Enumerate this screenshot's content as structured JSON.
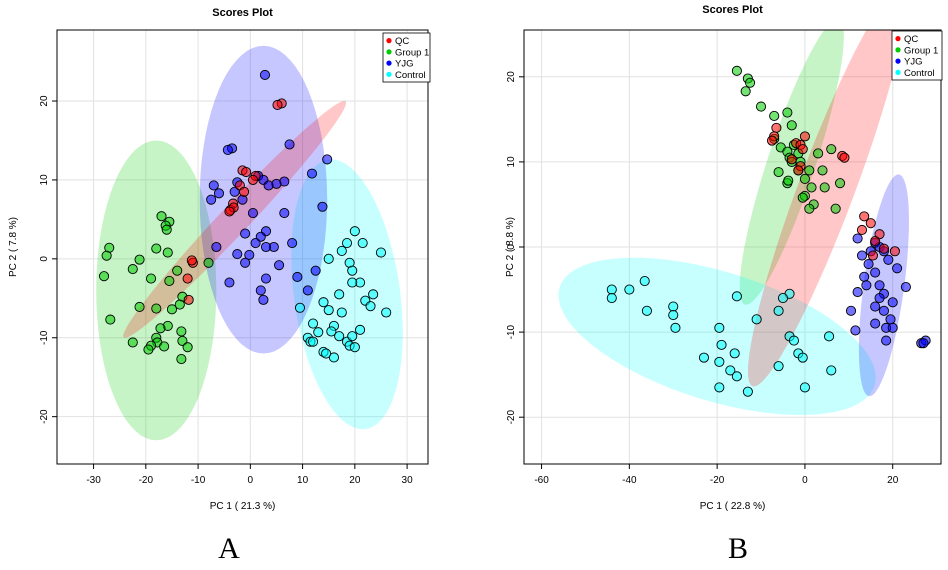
{
  "chart_data": [
    {
      "type": "scatter",
      "panel_label": "A",
      "title": "Scores Plot",
      "xlabel": "PC 1 ( 21.3 %)",
      "ylabel": "PC 2 ( 7.8 %)",
      "xlim": [
        -37,
        34
      ],
      "ylim": [
        -26,
        29
      ],
      "xticks": [
        -30,
        -20,
        -10,
        0,
        10,
        20,
        30
      ],
      "yticks": [
        -20,
        -10,
        0,
        10,
        20
      ],
      "grid": true,
      "legend_position": "top-right",
      "series": [
        {
          "name": "QC",
          "color": "#ff0000",
          "points": [
            [
              6,
              19.7
            ],
            [
              5.2,
              19.5
            ],
            [
              -1.5,
              11.2
            ],
            [
              -0.8,
              11
            ],
            [
              1,
              10.5
            ],
            [
              0.5,
              10
            ],
            [
              -2,
              9.3
            ],
            [
              -1.2,
              8.5
            ],
            [
              -3.3,
              7
            ],
            [
              -3.8,
              6.2
            ],
            [
              -3.2,
              6.5
            ],
            [
              -4,
              6
            ],
            [
              -11,
              -0.5
            ],
            [
              -11.2,
              -0.2
            ],
            [
              -12,
              -2.5
            ],
            [
              -11.8,
              -5.2
            ]
          ],
          "ellipse": {
            "cx": -3,
            "cy": 5,
            "rx": 26,
            "ry": 2.2,
            "angle_deg": 35
          }
        },
        {
          "name": "Group 1",
          "color": "#00cc00",
          "points": [
            [
              -17,
              5.4
            ],
            [
              -15.5,
              4.7
            ],
            [
              -16.2,
              4.2
            ],
            [
              -16,
              3.7
            ],
            [
              -27,
              1.4
            ],
            [
              -27.5,
              0.4
            ],
            [
              -18,
              1.3
            ],
            [
              -15.8,
              0.8
            ],
            [
              -21.2,
              -0.1
            ],
            [
              -22.5,
              -1.3
            ],
            [
              -14,
              -1.5
            ],
            [
              -28,
              -2.2
            ],
            [
              -19,
              -2.5
            ],
            [
              -15.5,
              -2.8
            ],
            [
              -8,
              -0.5
            ],
            [
              -13,
              -4.8
            ],
            [
              -13.5,
              -5.8
            ],
            [
              -18,
              -6.3
            ],
            [
              -21.2,
              -6.1
            ],
            [
              -15,
              -6.4
            ],
            [
              -26.8,
              -7.7
            ],
            [
              -15.8,
              -8.5
            ],
            [
              -17.2,
              -8.8
            ],
            [
              -13.2,
              -9.2
            ],
            [
              -18,
              -10
            ],
            [
              -17.8,
              -10.6
            ],
            [
              -13,
              -10.4
            ],
            [
              -22.5,
              -10.6
            ],
            [
              -16.5,
              -11.1
            ],
            [
              -19,
              -11
            ],
            [
              -19.5,
              -11.5
            ],
            [
              -12,
              -11.2
            ],
            [
              -13.2,
              -12.7
            ]
          ],
          "ellipse": {
            "cx": -18,
            "cy": -4,
            "rx": 11.5,
            "ry": 19,
            "angle_deg": 0
          }
        },
        {
          "name": "YJG",
          "color": "#0000ff",
          "points": [
            [
              2.8,
              23.3
            ],
            [
              -3.5,
              14
            ],
            [
              -4.3,
              13.8
            ],
            [
              7.5,
              14.5
            ],
            [
              14.7,
              12.6
            ],
            [
              1.5,
              10.5
            ],
            [
              2.5,
              10
            ],
            [
              6.5,
              9.8
            ],
            [
              11.8,
              10.8
            ],
            [
              -7,
              9.3
            ],
            [
              -6,
              8.3
            ],
            [
              -3,
              8.5
            ],
            [
              -2.5,
              9.7
            ],
            [
              3.5,
              9.3
            ],
            [
              5,
              9.5
            ],
            [
              -7.5,
              7.5
            ],
            [
              -1.5,
              7.5
            ],
            [
              0.5,
              5.8
            ],
            [
              3,
              3.5
            ],
            [
              6.5,
              5.8
            ],
            [
              13.8,
              6.6
            ],
            [
              -1,
              3.2
            ],
            [
              2,
              2.8
            ],
            [
              1,
              2
            ],
            [
              4.5,
              1.5
            ],
            [
              8,
              2
            ],
            [
              -6.5,
              1.5
            ],
            [
              -2.5,
              0.6
            ],
            [
              -0.2,
              0.5
            ],
            [
              3,
              1.5
            ],
            [
              -1,
              -0.5
            ],
            [
              5.5,
              -0.8
            ],
            [
              9,
              -2.3
            ],
            [
              3,
              -2.5
            ],
            [
              -4,
              -3
            ],
            [
              12.5,
              -1.5
            ],
            [
              2,
              -4
            ],
            [
              2.5,
              -5.2
            ],
            [
              11,
              -4
            ]
          ],
          "ellipse": {
            "cx": 2.5,
            "cy": 7.5,
            "rx": 12.2,
            "ry": 19.5,
            "angle_deg": 0
          }
        },
        {
          "name": "Control",
          "color": "#00ffff",
          "points": [
            [
              20,
              3.5
            ],
            [
              18.5,
              2
            ],
            [
              21.5,
              2
            ],
            [
              17.5,
              1
            ],
            [
              25,
              0.8
            ],
            [
              15,
              0
            ],
            [
              19,
              -0.5
            ],
            [
              19.5,
              -1.5
            ],
            [
              21,
              -3
            ],
            [
              19.5,
              -3
            ],
            [
              17,
              -4.5
            ],
            [
              23.5,
              -4.5
            ],
            [
              14,
              -5.5
            ],
            [
              22,
              -5.3
            ],
            [
              15,
              -6.5
            ],
            [
              17.5,
              -6.8
            ],
            [
              23,
              -6
            ],
            [
              26,
              -6.8
            ],
            [
              9.5,
              -6.2
            ],
            [
              12,
              -8.2
            ],
            [
              16,
              -8.5
            ],
            [
              21,
              -9
            ],
            [
              13,
              -9.3
            ],
            [
              15.5,
              -9.2
            ],
            [
              17,
              -9.8
            ],
            [
              11,
              -10
            ],
            [
              11.5,
              -10.5
            ],
            [
              18.5,
              -10.5
            ],
            [
              19.5,
              -9.8
            ],
            [
              12,
              -10.5
            ],
            [
              14,
              -11.8
            ],
            [
              16,
              -12.5
            ],
            [
              14.5,
              -12
            ],
            [
              19,
              -11
            ],
            [
              20,
              -11.2
            ]
          ],
          "ellipse": {
            "cx": 18.5,
            "cy": -4.5,
            "rx": 10,
            "ry": 17.5,
            "angle_deg": 15
          }
        }
      ]
    },
    {
      "type": "scatter",
      "panel_label": "B",
      "title": "Scores Plot",
      "xlabel": "PC 1 ( 22.8 %)",
      "ylabel": "PC 2 ( 8.8 %)",
      "xlim": [
        -64,
        31
      ],
      "ylim": [
        -25.5,
        25.5
      ],
      "xticks": [
        -60,
        -40,
        -20,
        0,
        20
      ],
      "yticks": [
        -20,
        -10,
        0,
        10,
        20
      ],
      "grid": true,
      "legend_position": "top-right",
      "series": [
        {
          "name": "QC",
          "color": "#ff0000",
          "points": [
            [
              -6.5,
              14
            ],
            [
              -7,
              13
            ],
            [
              -7.5,
              12.5
            ],
            [
              -2,
              12.2
            ],
            [
              -1,
              12
            ],
            [
              0,
              13
            ],
            [
              -3,
              10.3
            ],
            [
              -0.5,
              11.5
            ],
            [
              8.5,
              10.7
            ],
            [
              9,
              10.5
            ],
            [
              -1,
              9.5
            ],
            [
              -1.5,
              9
            ],
            [
              13.5,
              3.6
            ],
            [
              15,
              2.8
            ],
            [
              13,
              2
            ],
            [
              17,
              1.5
            ],
            [
              16,
              0.7
            ],
            [
              20.5,
              -0.5
            ],
            [
              18,
              -0.2
            ],
            [
              15.5,
              -1
            ]
          ],
          "ellipse": {
            "cx": 5,
            "cy": 7,
            "rx": 29,
            "ry": 5.5,
            "angle_deg": 53
          }
        },
        {
          "name": "Group 1",
          "color": "#00cc00",
          "points": [
            [
              -15.5,
              20.7
            ],
            [
              -13,
              19.8
            ],
            [
              -12.5,
              19.3
            ],
            [
              -13.5,
              18.3
            ],
            [
              -10,
              16.5
            ],
            [
              -7,
              15.4
            ],
            [
              -4,
              15.8
            ],
            [
              -3,
              14.3
            ],
            [
              -2.5,
              12
            ],
            [
              -7,
              12.7
            ],
            [
              -5.5,
              11.7
            ],
            [
              -4,
              11.2
            ],
            [
              -1.5,
              11
            ],
            [
              -3.5,
              10.5
            ],
            [
              -3,
              10
            ],
            [
              -1,
              10
            ],
            [
              3,
              11
            ],
            [
              6,
              11.5
            ],
            [
              -1.5,
              9
            ],
            [
              1,
              9
            ],
            [
              4,
              9
            ],
            [
              -6,
              8.8
            ],
            [
              0,
              8
            ],
            [
              -4,
              7.5
            ],
            [
              -3.8,
              7.8
            ],
            [
              1.5,
              7
            ],
            [
              4.5,
              7
            ],
            [
              0,
              6
            ],
            [
              -0.5,
              5.8
            ],
            [
              2,
              5
            ],
            [
              1,
              4.5
            ],
            [
              7,
              4.5
            ],
            [
              8,
              7.5
            ]
          ],
          "ellipse": {
            "cx": -3,
            "cy": 10,
            "rx": 20,
            "ry": 4.8,
            "angle_deg": 56
          }
        },
        {
          "name": "YJG",
          "color": "#0000ff",
          "points": [
            [
              12,
              1
            ],
            [
              16,
              0.5
            ],
            [
              15,
              -0.5
            ],
            [
              13,
              -1
            ],
            [
              17,
              0
            ],
            [
              18,
              -0.5
            ],
            [
              19,
              -1.5
            ],
            [
              14.5,
              -2
            ],
            [
              16,
              -3
            ],
            [
              13.5,
              -3.5
            ],
            [
              14,
              -4.5
            ],
            [
              17,
              -4.5
            ],
            [
              21,
              -2.5
            ],
            [
              18,
              -5.5
            ],
            [
              17,
              -6
            ],
            [
              12,
              -5.3
            ],
            [
              20,
              -6.5
            ],
            [
              16,
              -7
            ],
            [
              23,
              -4.7
            ],
            [
              18,
              -7.5
            ],
            [
              19.5,
              -8.5
            ],
            [
              10.5,
              -7.5
            ],
            [
              16,
              -9
            ],
            [
              18.5,
              -9.5
            ],
            [
              11.5,
              -9.8
            ],
            [
              20,
              -9.5
            ],
            [
              18.5,
              -11
            ],
            [
              26.5,
              -11.3
            ],
            [
              27.5,
              -11
            ],
            [
              27,
              -11.3
            ]
          ],
          "ellipse": {
            "cx": 18,
            "cy": -4.5,
            "rx": 13.5,
            "ry": 4.5,
            "angle_deg": 74
          }
        },
        {
          "name": "Control",
          "color": "#00ffff",
          "points": [
            [
              -44,
              -5
            ],
            [
              -44,
              -6
            ],
            [
              -40,
              -5
            ],
            [
              -36.5,
              -4
            ],
            [
              -36,
              -7.5
            ],
            [
              -30,
              -7
            ],
            [
              -30,
              -8
            ],
            [
              -29.5,
              -9.5
            ],
            [
              -15.5,
              -5.8
            ],
            [
              -3.5,
              -5.5
            ],
            [
              -5,
              -6
            ],
            [
              -11,
              -8.5
            ],
            [
              -6,
              -7.5
            ],
            [
              -3.5,
              -10.5
            ],
            [
              -2.5,
              -11
            ],
            [
              -19.5,
              -9.5
            ],
            [
              -19,
              -11.5
            ],
            [
              -16,
              -12.5
            ],
            [
              -1.5,
              -12.5
            ],
            [
              -23,
              -13
            ],
            [
              -19.5,
              -13.5
            ],
            [
              -6,
              -14
            ],
            [
              -0.5,
              -13
            ],
            [
              5.5,
              -10.5
            ],
            [
              6,
              -14.5
            ],
            [
              -17,
              -14.5
            ],
            [
              -19.5,
              -16.5
            ],
            [
              -15.5,
              -15.2
            ],
            [
              -13,
              -17
            ],
            [
              0,
              -16.5
            ]
          ],
          "ellipse": {
            "cx": -20,
            "cy": -10.5,
            "rx": 36.5,
            "ry": 7.8,
            "angle_deg": -8
          }
        }
      ]
    }
  ]
}
